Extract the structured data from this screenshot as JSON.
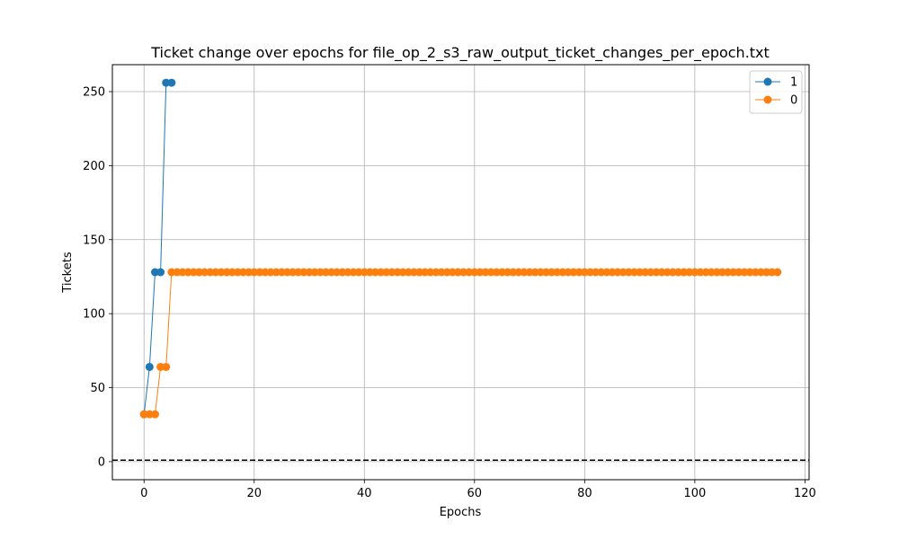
{
  "chart_data": {
    "type": "line",
    "title": "Ticket change over epochs for file_op_2_s3_raw_output_ticket_changes_per_epoch.txt",
    "xlabel": "Epochs",
    "ylabel": "Tickets",
    "xlim": [
      -5.75,
      120.75
    ],
    "ylim": [
      -12.2,
      268.2
    ],
    "xticks": [
      0,
      20,
      40,
      60,
      80,
      100,
      120
    ],
    "yticks": [
      0,
      50,
      100,
      150,
      200,
      250
    ],
    "grid": true,
    "legend_position": "top-right",
    "reference_line": {
      "y": 1,
      "style": "dashed",
      "color": "#000000"
    },
    "series": [
      {
        "name": "1",
        "color": "#1f77b4",
        "x": [
          0,
          1,
          2,
          3,
          4,
          5
        ],
        "y": [
          32,
          64,
          128,
          128,
          256,
          256
        ]
      },
      {
        "name": "0",
        "color": "#ff7f0e",
        "x_start": 0,
        "x_end": 115,
        "y_initial": [
          32,
          32,
          32,
          64,
          64
        ],
        "y_rest": 128
      }
    ]
  }
}
